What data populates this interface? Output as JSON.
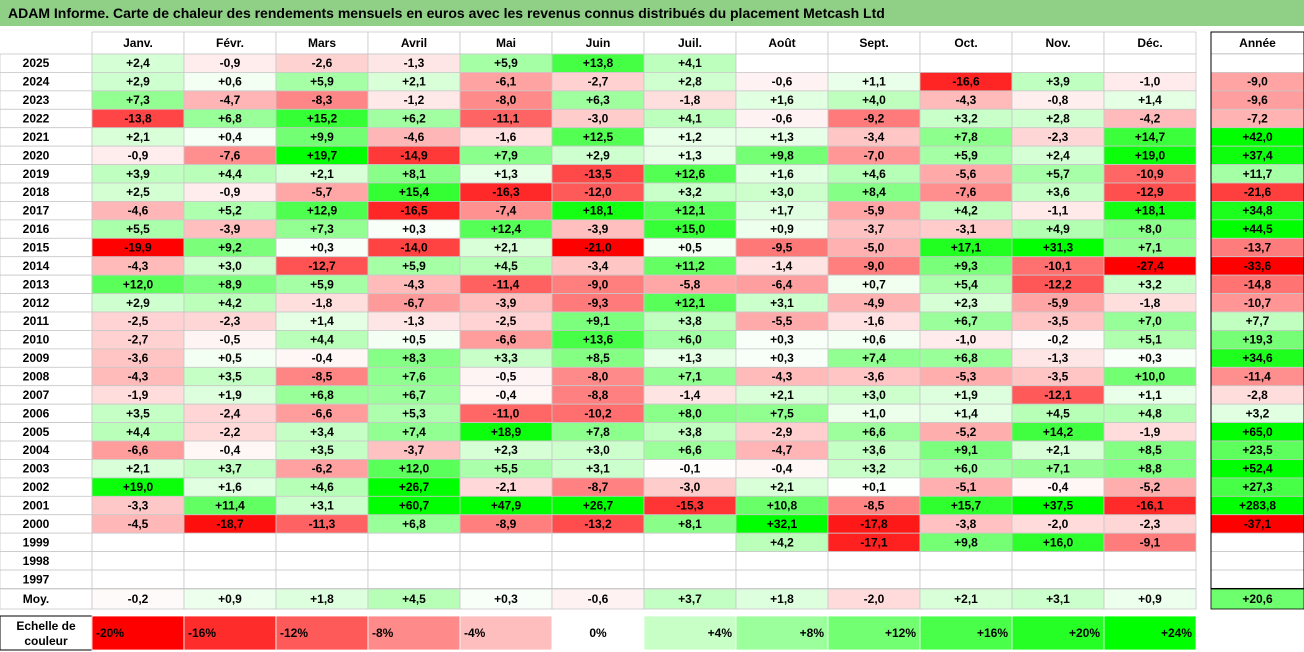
{
  "title": "ADAM Informe. Carte de chaleur des rendements mensuels en euros avec les revenus connus distribués du placement Metcash Ltd",
  "chart_data": {
    "type": "heatmap",
    "columns": [
      "Janv.",
      "Févr.",
      "Mars",
      "Avril",
      "Mai",
      "Juin",
      "Juil.",
      "Août",
      "Sept.",
      "Oct.",
      "Nov.",
      "Déc."
    ],
    "year_column_label": "Année",
    "average_row_label": "Moy.",
    "rows": [
      {
        "year": "2025",
        "values": [
          "+2,4",
          "-0,9",
          "-2,6",
          "-1,3",
          "+5,9",
          "+13,8",
          "+4,1",
          "",
          "",
          "",
          "",
          ""
        ],
        "annual": ""
      },
      {
        "year": "2024",
        "values": [
          "+2,9",
          "+0,6",
          "+5,9",
          "+2,1",
          "-6,1",
          "-2,7",
          "+2,8",
          "-0,6",
          "+1,1",
          "-16,6",
          "+3,9",
          "-1,0"
        ],
        "annual": "-9,0"
      },
      {
        "year": "2023",
        "values": [
          "+7,3",
          "-4,7",
          "-8,3",
          "-1,2",
          "-8,0",
          "+6,3",
          "-1,8",
          "+1,6",
          "+4,0",
          "-4,3",
          "-0,8",
          "+1,4"
        ],
        "annual": "-9,6"
      },
      {
        "year": "2022",
        "values": [
          "-13,8",
          "+6,8",
          "+15,2",
          "+6,2",
          "-11,1",
          "-3,0",
          "+4,1",
          "-0,6",
          "-9,2",
          "+3,2",
          "+2,8",
          "-4,2"
        ],
        "annual": "-7,2"
      },
      {
        "year": "2021",
        "values": [
          "+2,1",
          "+0,4",
          "+9,9",
          "-4,6",
          "-1,6",
          "+12,5",
          "+1,2",
          "+1,3",
          "-3,4",
          "+7,8",
          "-2,3",
          "+14,7"
        ],
        "annual": "+42,0"
      },
      {
        "year": "2020",
        "values": [
          "-0,9",
          "-7,6",
          "+19,7",
          "-14,9",
          "+7,9",
          "+2,9",
          "+1,3",
          "+9,8",
          "-7,0",
          "+5,9",
          "+2,4",
          "+19,0"
        ],
        "annual": "+37,4"
      },
      {
        "year": "2019",
        "values": [
          "+3,9",
          "+4,4",
          "+2,1",
          "+8,1",
          "+1,3",
          "-13,5",
          "+12,6",
          "+1,6",
          "+4,6",
          "-5,6",
          "+5,7",
          "-10,9"
        ],
        "annual": "+11,7"
      },
      {
        "year": "2018",
        "values": [
          "+2,5",
          "-0,9",
          "-5,7",
          "+15,4",
          "-16,3",
          "-12,0",
          "+3,2",
          "+3,0",
          "+8,4",
          "-7,6",
          "+3,6",
          "-12,9"
        ],
        "annual": "-21,6"
      },
      {
        "year": "2017",
        "values": [
          "-4,6",
          "+5,2",
          "+12,9",
          "-16,5",
          "-7,4",
          "+18,1",
          "+12,1",
          "+1,7",
          "-5,9",
          "+4,2",
          "-1,1",
          "+18,1"
        ],
        "annual": "+34,8"
      },
      {
        "year": "2016",
        "values": [
          "+5,5",
          "-3,9",
          "+7,3",
          "+0,3",
          "+12,4",
          "-3,9",
          "+15,0",
          "+0,9",
          "-3,7",
          "-3,1",
          "+4,9",
          "+8,0"
        ],
        "annual": "+44,5"
      },
      {
        "year": "2015",
        "values": [
          "-19,9",
          "+9,2",
          "+0,3",
          "-14,0",
          "+2,1",
          "-21,0",
          "+0,5",
          "-9,5",
          "-5,0",
          "+17,1",
          "+31,3",
          "+7,1"
        ],
        "annual": "-13,7"
      },
      {
        "year": "2014",
        "values": [
          "-4,3",
          "+3,0",
          "-12,7",
          "+5,9",
          "+4,5",
          "-3,4",
          "+11,2",
          "-1,4",
          "-9,0",
          "+9,3",
          "-10,1",
          "-27,4"
        ],
        "annual": "-33,6"
      },
      {
        "year": "2013",
        "values": [
          "+12,0",
          "+8,9",
          "+5,9",
          "-4,3",
          "-11,4",
          "-9,0",
          "-5,8",
          "-6,4",
          "+0,7",
          "+5,4",
          "-12,2",
          "+3,2"
        ],
        "annual": "-14,8"
      },
      {
        "year": "2012",
        "values": [
          "+2,9",
          "+4,2",
          "-1,8",
          "-6,7",
          "-3,9",
          "-9,3",
          "+12,1",
          "+3,1",
          "-4,9",
          "+2,3",
          "-5,9",
          "-1,8"
        ],
        "annual": "-10,7"
      },
      {
        "year": "2011",
        "values": [
          "-2,5",
          "-2,3",
          "+1,4",
          "-1,3",
          "-2,5",
          "+9,1",
          "+3,8",
          "-5,5",
          "-1,6",
          "+6,7",
          "-3,5",
          "+7,0"
        ],
        "annual": "+7,7"
      },
      {
        "year": "2010",
        "values": [
          "-2,7",
          "-0,5",
          "+4,4",
          "+0,5",
          "-6,6",
          "+13,6",
          "+6,0",
          "+0,3",
          "+0,6",
          "-1,0",
          "-0,2",
          "+5,1"
        ],
        "annual": "+19,3"
      },
      {
        "year": "2009",
        "values": [
          "-3,6",
          "+0,5",
          "-0,4",
          "+8,3",
          "+3,3",
          "+8,5",
          "+1,3",
          "+0,3",
          "+7,4",
          "+6,8",
          "-1,3",
          "+0,3"
        ],
        "annual": "+34,6"
      },
      {
        "year": "2008",
        "values": [
          "-4,3",
          "+3,5",
          "-8,5",
          "+7,6",
          "-0,5",
          "-8,0",
          "+7,1",
          "-4,3",
          "-3,6",
          "-5,3",
          "-3,5",
          "+10,0"
        ],
        "annual": "-11,4"
      },
      {
        "year": "2007",
        "values": [
          "-1,9",
          "+1,9",
          "+6,8",
          "+6,7",
          "-0,4",
          "-8,8",
          "-1,4",
          "+2,1",
          "+3,0",
          "+1,9",
          "-12,1",
          "+1,1"
        ],
        "annual": "-2,8"
      },
      {
        "year": "2006",
        "values": [
          "+3,5",
          "-2,4",
          "-6,6",
          "+5,3",
          "-11,0",
          "-10,2",
          "+8,0",
          "+7,5",
          "+1,0",
          "+1,4",
          "+4,5",
          "+4,8"
        ],
        "annual": "+3,2"
      },
      {
        "year": "2005",
        "values": [
          "+4,4",
          "-2,2",
          "+3,4",
          "+7,4",
          "+18,9",
          "+7,8",
          "+3,8",
          "-2,9",
          "+6,6",
          "-5,2",
          "+14,2",
          "-1,9"
        ],
        "annual": "+65,0"
      },
      {
        "year": "2004",
        "values": [
          "-6,6",
          "-0,4",
          "+3,5",
          "-3,7",
          "+2,3",
          "+3,0",
          "+6,6",
          "-4,7",
          "+3,6",
          "+9,1",
          "+2,1",
          "+8,5"
        ],
        "annual": "+23,5"
      },
      {
        "year": "2003",
        "values": [
          "+2,1",
          "+3,7",
          "-6,2",
          "+12,0",
          "+5,5",
          "+3,1",
          "-0,1",
          "-0,4",
          "+3,2",
          "+6,0",
          "+7,1",
          "+8,8"
        ],
        "annual": "+52,4"
      },
      {
        "year": "2002",
        "values": [
          "+19,0",
          "+1,6",
          "+4,6",
          "+26,7",
          "-2,1",
          "-8,7",
          "-3,0",
          "+2,1",
          "+0,1",
          "-5,1",
          "-0,4",
          "-5,2"
        ],
        "annual": "+27,3"
      },
      {
        "year": "2001",
        "values": [
          "-3,3",
          "+11,4",
          "+3,1",
          "+60,7",
          "+47,9",
          "+26,7",
          "-15,3",
          "+10,8",
          "-8,5",
          "+15,7",
          "+37,5",
          "-16,1"
        ],
        "annual": "+283,8"
      },
      {
        "year": "2000",
        "values": [
          "-4,5",
          "-18,7",
          "-11,3",
          "+6,8",
          "-8,9",
          "-13,2",
          "+8,1",
          "+32,1",
          "-17,8",
          "-3,8",
          "-2,0",
          "-2,3"
        ],
        "annual": "-37,1"
      },
      {
        "year": "1999",
        "values": [
          "",
          "",
          "",
          "",
          "",
          "",
          "",
          "+4,2",
          "-17,1",
          "+9,8",
          "+16,0",
          "-9,1"
        ],
        "annual": ""
      },
      {
        "year": "1998",
        "values": [
          "",
          "",
          "",
          "",
          "",
          "",
          "",
          "",
          "",
          "",
          "",
          ""
        ],
        "annual": ""
      },
      {
        "year": "1997",
        "values": [
          "",
          "",
          "",
          "",
          "",
          "",
          "",
          "",
          "",
          "",
          "",
          ""
        ],
        "annual": ""
      }
    ],
    "averages": [
      "-0,2",
      "+0,9",
      "+1,8",
      "+4,5",
      "+0,3",
      "-0,6",
      "+3,7",
      "+1,8",
      "-2,0",
      "+2,1",
      "+3,1",
      "+0,9"
    ],
    "annual_average": "+20,6",
    "scale": {
      "label_line1": "Echelle de",
      "label_line2": "couleur",
      "steps": [
        {
          "label": "-20%",
          "value": -20
        },
        {
          "label": "-16%",
          "value": -16
        },
        {
          "label": "-12%",
          "value": -12
        },
        {
          "label": "-8%",
          "value": -8
        },
        {
          "label": "-4%",
          "value": -4
        },
        {
          "label": "0%",
          "value": 0
        },
        {
          "label": "+4%",
          "value": 4
        },
        {
          "label": "+8%",
          "value": 8
        },
        {
          "label": "+12%",
          "value": 12
        },
        {
          "label": "+16%",
          "value": 16
        },
        {
          "label": "+20%",
          "value": 20
        },
        {
          "label": "+24%",
          "value": 24
        }
      ]
    },
    "colors": {
      "negative_max": "#ff0000",
      "positive_max": "#00ff00",
      "neutral": "#ffffff",
      "title_background": "#8fcf86",
      "grid": "#c8c8c8"
    }
  }
}
